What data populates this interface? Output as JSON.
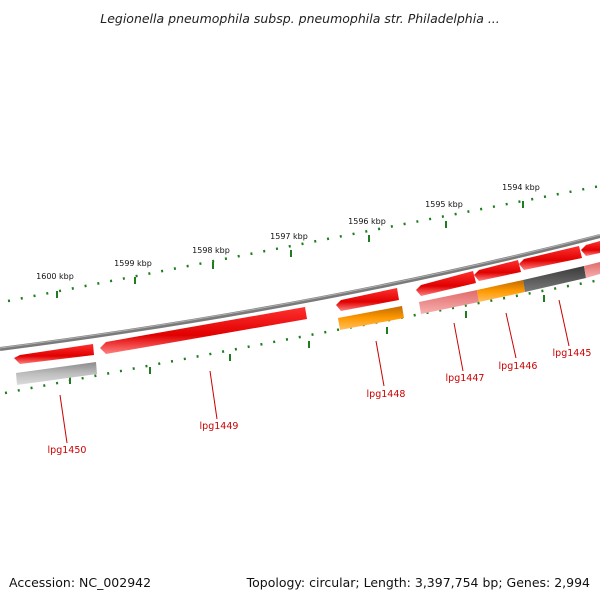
{
  "title": "Legionella pneumophila subsp. pneumophila str. Philadelphia ...",
  "footer": {
    "accession": "Accession: NC_002942",
    "summary": "Topology: circular; Length: 3,397,754 bp; Genes: 2,994"
  },
  "ruler": {
    "labels": [
      "1600 kbp",
      "1599 kbp",
      "1598 kbp",
      "1597 kbp",
      "1596 kbp",
      "1595 kbp",
      "1594 kbp"
    ]
  },
  "genes": [
    "lpg1450",
    "lpg1449",
    "lpg1448",
    "lpg1447",
    "lpg1446",
    "lpg1445"
  ],
  "colors": {
    "backbone": "#7a7a7a",
    "gene_red": "#ee0000",
    "gene_pink": "#f08a8a",
    "gene_orange": "#ff9900",
    "gene_gray": "#b8b8b8",
    "gene_dark": "#555555",
    "ruler_green": "#1e7d1e",
    "label_red": "#cc0000"
  }
}
